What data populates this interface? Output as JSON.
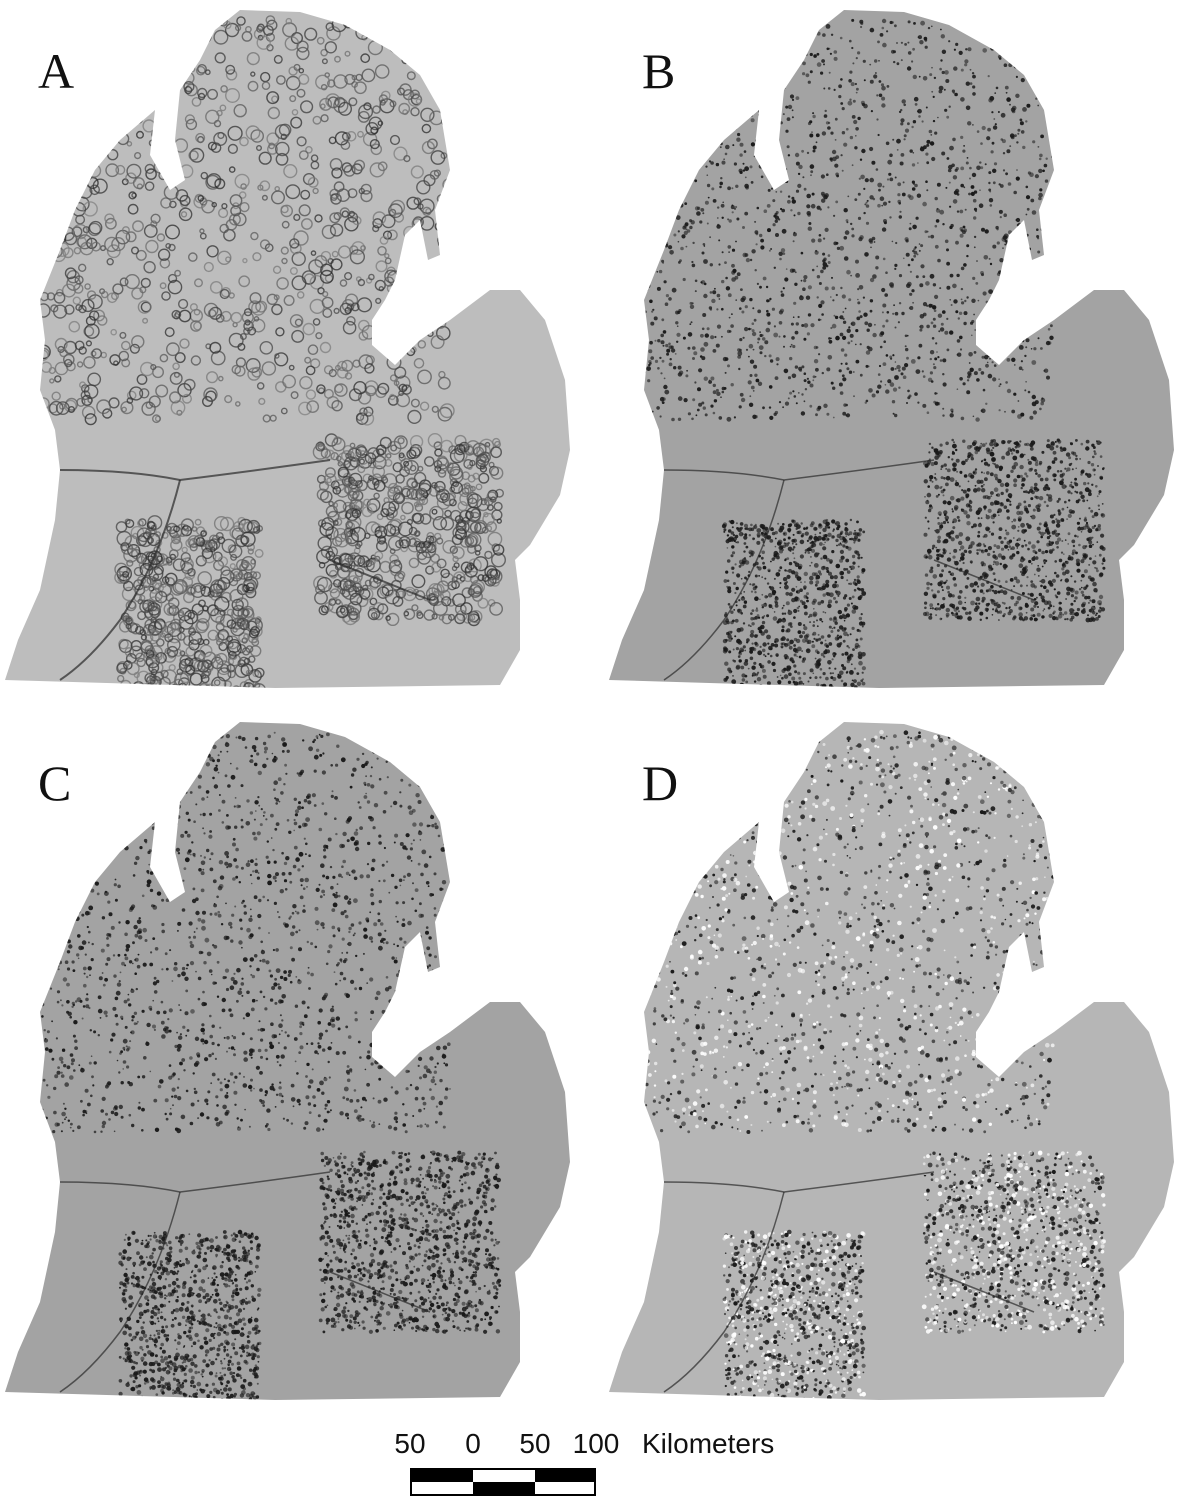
{
  "panels": [
    {
      "letter": "A",
      "style": "hillshade-shaded"
    },
    {
      "letter": "B",
      "style": "speckled-dark"
    },
    {
      "letter": "C",
      "style": "speckled-dark"
    },
    {
      "letter": "D",
      "style": "speckled-contrast"
    }
  ],
  "scale_bar": {
    "labels": [
      "50",
      "0",
      "50",
      "100"
    ],
    "units": "Kilometers"
  },
  "colors": {
    "land_light": "#bdbdbd",
    "land_mid": "#a3a3a3",
    "dark": "#1a1a1a",
    "white": "#ffffff"
  }
}
